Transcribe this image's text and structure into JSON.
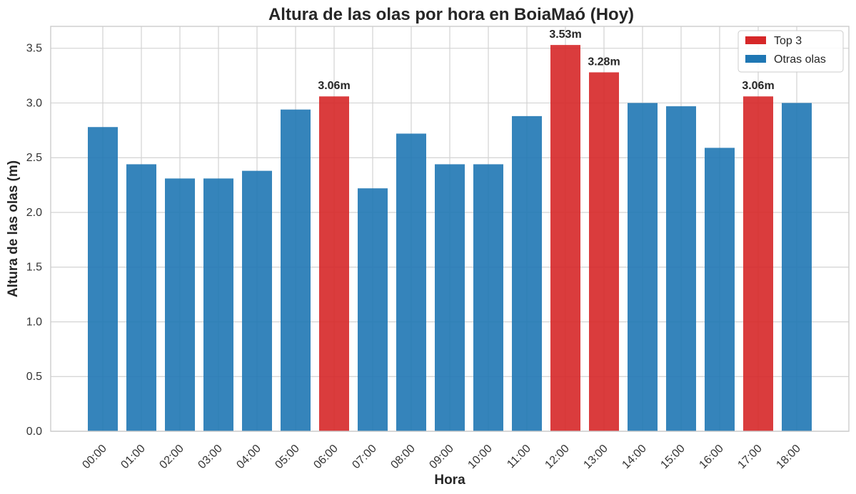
{
  "chart_data": {
    "type": "bar",
    "title": "Altura de las olas por hora en BoiaMaó (Hoy)",
    "xlabel": "Hora",
    "ylabel": "Altura de las olas (m)",
    "categories": [
      "00:00",
      "01:00",
      "02:00",
      "03:00",
      "04:00",
      "05:00",
      "06:00",
      "07:00",
      "08:00",
      "09:00",
      "10:00",
      "11:00",
      "12:00",
      "13:00",
      "14:00",
      "15:00",
      "16:00",
      "17:00",
      "18:00"
    ],
    "values": [
      2.78,
      2.44,
      2.31,
      2.31,
      2.38,
      2.94,
      3.06,
      2.22,
      2.72,
      2.44,
      2.44,
      2.88,
      3.53,
      3.28,
      3.0,
      2.97,
      2.59,
      3.06,
      3.0
    ],
    "highlight": [
      false,
      false,
      false,
      false,
      false,
      false,
      true,
      false,
      false,
      false,
      false,
      false,
      true,
      true,
      false,
      false,
      false,
      true,
      false
    ],
    "data_labels": {
      "6": "3.06m",
      "12": "3.53m",
      "13": "3.28m",
      "17": "3.06m"
    },
    "ylim": [
      0,
      3.7
    ],
    "yticks": [
      0.0,
      0.5,
      1.0,
      1.5,
      2.0,
      2.5,
      3.0,
      3.5
    ],
    "ytick_labels": [
      "0.0",
      "0.5",
      "1.0",
      "1.5",
      "2.0",
      "2.5",
      "3.0",
      "3.5"
    ],
    "grid": true,
    "legend": {
      "placement": "top-right",
      "entries": [
        {
          "label": "Top 3",
          "color": "#d62728"
        },
        {
          "label": "Otras olas",
          "color": "#1f77b4"
        }
      ]
    },
    "colors": {
      "highlight": "#d62728",
      "normal": "#1f77b4"
    }
  }
}
